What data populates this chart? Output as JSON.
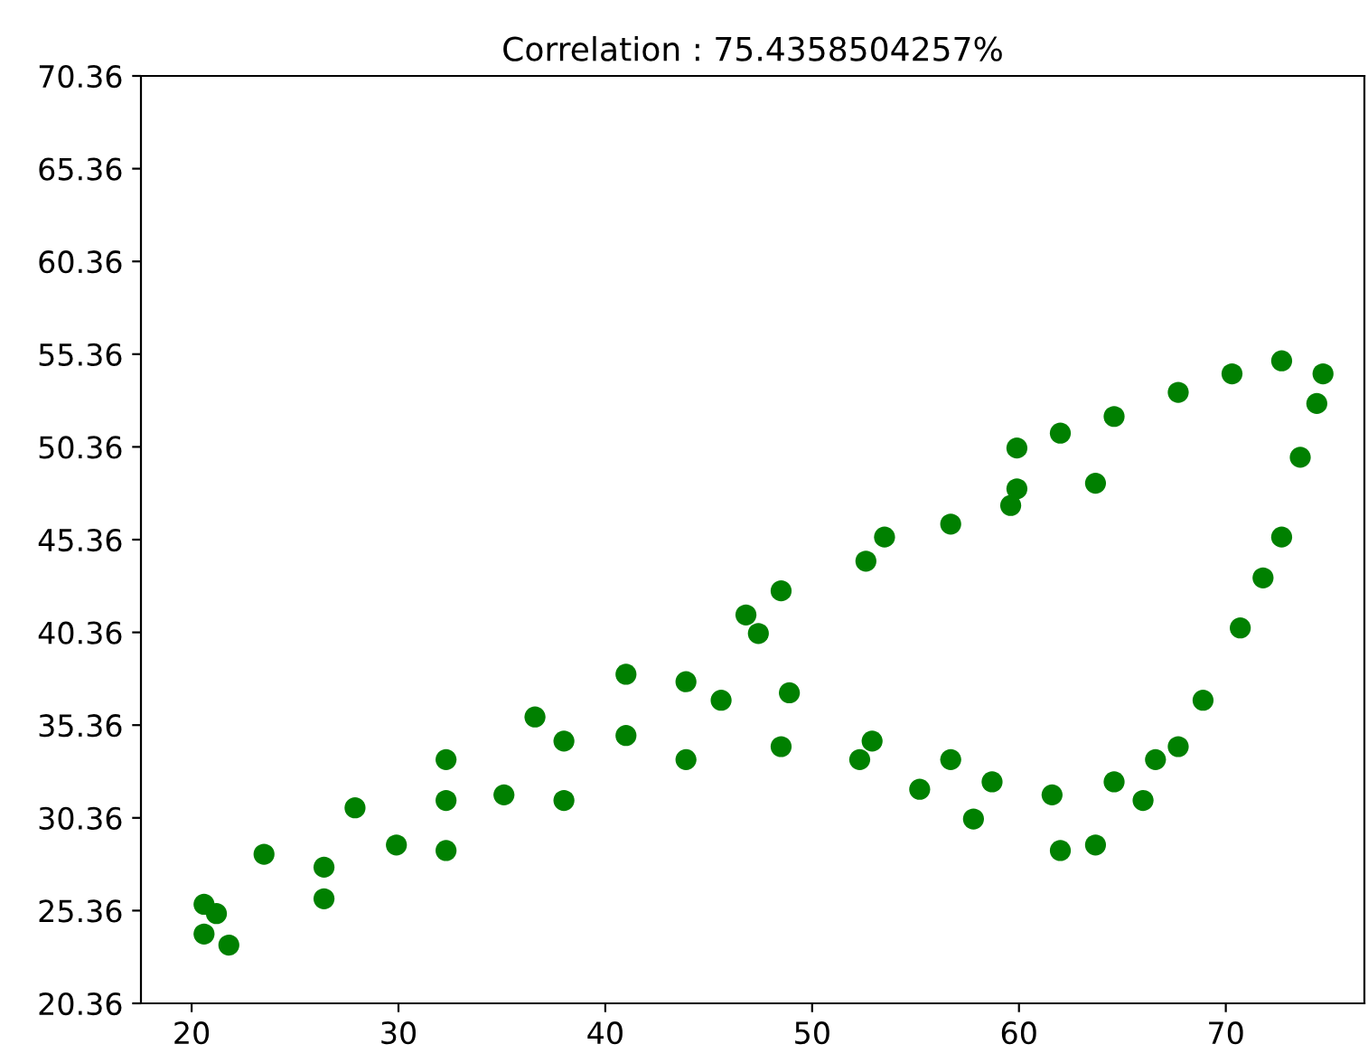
{
  "chart_data": {
    "type": "scatter",
    "title": "Correlation : 75.4358504257%",
    "marker": "circle",
    "xlim": [
      17.55,
      76.7
    ],
    "ylim": [
      20.36,
      70.36
    ],
    "xticks": [
      20,
      30,
      40,
      50,
      60,
      70
    ],
    "yticks": [
      20.36,
      25.36,
      30.36,
      35.36,
      40.36,
      45.36,
      50.36,
      55.36,
      60.36,
      65.36,
      70.36
    ],
    "series": [
      {
        "color": "#008000",
        "x": [
          20.6,
          23.5,
          27.9,
          32.3,
          36.6,
          41.0,
          46.8,
          48.5,
          53.5,
          56.7,
          59.6,
          59.9,
          63.7,
          20.6,
          26.4,
          32.3,
          38.0,
          43.9,
          47.4,
          52.6,
          21.2,
          29.9,
          35.1,
          41.0,
          45.6,
          48.9,
          21.8,
          26.4,
          32.3,
          38.0,
          43.9,
          48.5,
          52.3,
          55.2,
          57.8,
          62.0,
          63.7,
          66.0,
          67.7,
          68.9,
          70.7,
          71.8,
          72.7,
          73.6,
          74.4,
          74.7,
          72.7,
          70.3,
          67.7,
          64.6,
          62.0,
          59.9,
          52.9,
          56.7,
          58.7,
          61.6,
          64.6,
          66.6
        ],
        "values": [
          25.7,
          28.4,
          30.9,
          33.5,
          35.8,
          38.1,
          41.3,
          42.6,
          45.5,
          46.2,
          47.2,
          48.1,
          48.4,
          24.1,
          27.7,
          31.3,
          34.5,
          37.7,
          40.3,
          44.2,
          25.2,
          28.9,
          31.6,
          34.8,
          36.7,
          37.1,
          23.5,
          26.0,
          28.6,
          31.3,
          33.5,
          34.2,
          33.5,
          31.9,
          30.3,
          28.6,
          28.9,
          31.3,
          34.2,
          36.7,
          40.6,
          43.3,
          45.5,
          49.8,
          52.7,
          54.3,
          55.0,
          54.3,
          53.3,
          52.0,
          51.1,
          50.3,
          34.5,
          33.5,
          32.3,
          31.6,
          32.3,
          33.5
        ]
      }
    ]
  }
}
